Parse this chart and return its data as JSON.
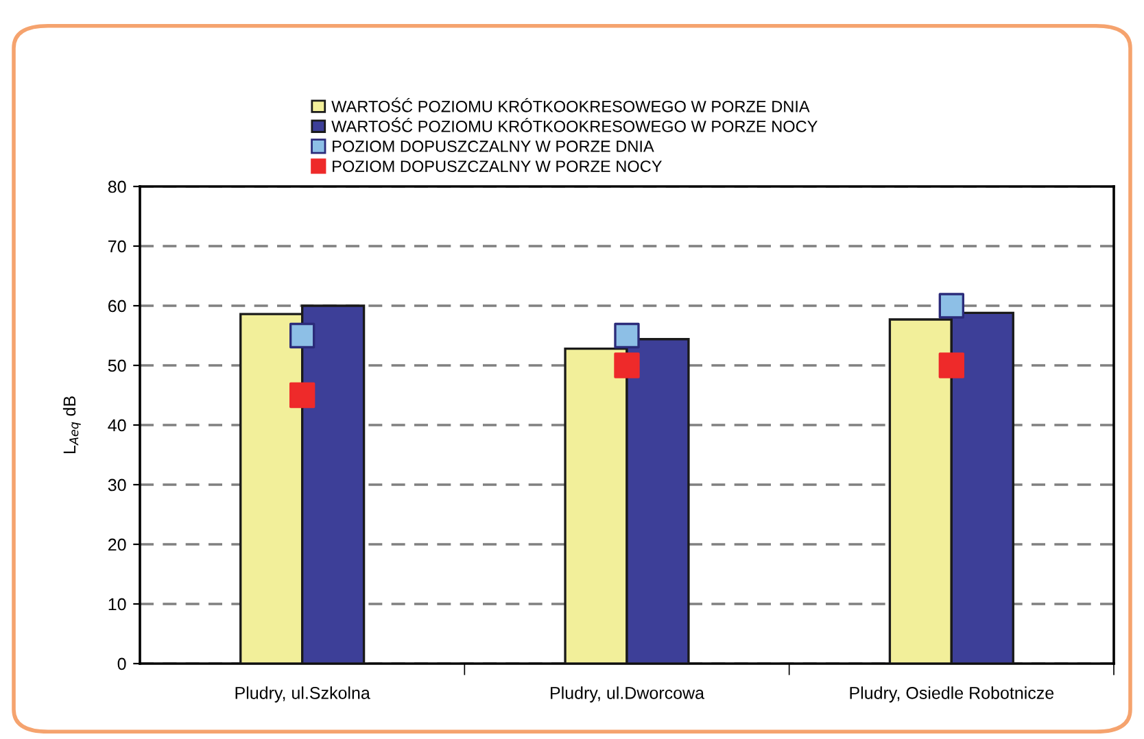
{
  "chart_data": {
    "type": "bar",
    "ylabel": "L$_{Aeq}$ dB",
    "categories": [
      "Pludry, ul.Szkolna",
      "Pludry, ul.Dworcowa",
      "Pludry, Osiedle Robotnicze"
    ],
    "series": [
      {
        "name": "WARTOŚĆ POZIOMU KRÓTKOOKRESOWEGO W PORZE DNIA",
        "color": "#f2ef9a",
        "values": [
          58.6,
          52.8,
          57.7
        ]
      },
      {
        "name": "WARTOŚĆ POZIOMU KRÓTKOOKRESOWEGO W PORZE NOCY",
        "color": "#3d3f98",
        "values": [
          60,
          54.4,
          58.8
        ]
      },
      {
        "name": "POZIOM DOPUSZCZALNY W PORZE DNIA",
        "type": "scatter",
        "marker": "square",
        "color": "#8dbfe6",
        "x": [
          "Pludry, ul.Szkolna",
          "Pludry, ul.Dworcowa",
          "Pludry, Osiedle Robotnicze"
        ],
        "values": [
          55,
          55,
          60
        ]
      },
      {
        "name": "POZIOM DOPUSZCZALNY W PORZE NOCY",
        "type": "scatter",
        "marker": "square",
        "color": "#ee2a2a",
        "x": [
          "Pludry, ul.Szkolna",
          "Pludry, ul.Dworcowa",
          "Pludry, Osiedle Robotnicze"
        ],
        "values": [
          45,
          50,
          50
        ]
      }
    ],
    "ylim": [
      0,
      80
    ],
    "yticks": [
      0,
      10,
      20,
      30,
      40,
      50,
      60,
      70,
      80
    ],
    "grid": "y",
    "legend": "top"
  }
}
